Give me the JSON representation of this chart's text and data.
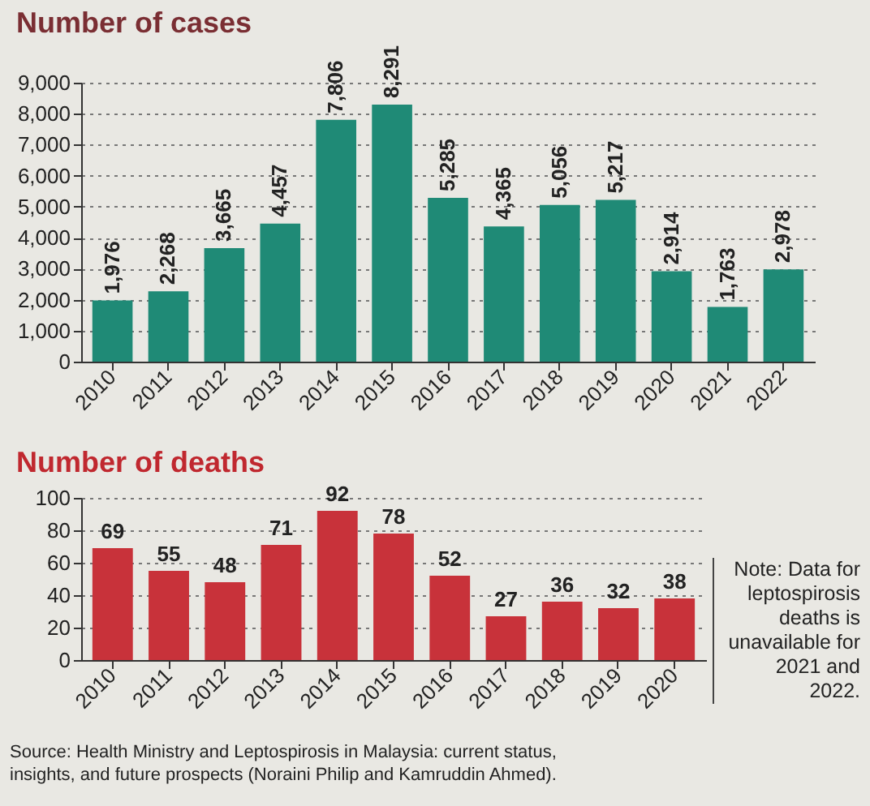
{
  "chart_data": [
    {
      "type": "bar",
      "title": "Number of cases",
      "categories": [
        "2010",
        "2011",
        "2012",
        "2013",
        "2014",
        "2015",
        "2016",
        "2017",
        "2018",
        "2019",
        "2020",
        "2021",
        "2022"
      ],
      "values": [
        1976,
        2268,
        3665,
        4457,
        7806,
        8291,
        5285,
        4365,
        5056,
        5217,
        2914,
        1763,
        2978
      ],
      "color": "#1f8a76",
      "ylim": [
        0,
        9000
      ],
      "yticks": [
        {
          "value": 0,
          "label": "0"
        },
        {
          "value": 1000,
          "label": "1,000"
        },
        {
          "value": 2000,
          "label": "2,000"
        },
        {
          "value": 3000,
          "label": "3,000"
        },
        {
          "value": 4000,
          "label": "4,000"
        },
        {
          "value": 5000,
          "label": "5,000"
        },
        {
          "value": 6000,
          "label": "6,000"
        },
        {
          "value": 7000,
          "label": "7,000"
        },
        {
          "value": 8000,
          "label": "8,000"
        },
        {
          "value": 9000,
          "label": "9,000"
        }
      ],
      "grid": "y",
      "value_labels": [
        "1,976",
        "2,268",
        "3,665",
        "4,457",
        "7,806",
        "8,291",
        "5,285",
        "4,365",
        "5,056",
        "5,217",
        "2,914",
        "1,763",
        "2,978"
      ]
    },
    {
      "type": "bar",
      "title": "Number of deaths",
      "categories": [
        "2010",
        "2011",
        "2012",
        "2013",
        "2014",
        "2015",
        "2016",
        "2017",
        "2018",
        "2019",
        "2020"
      ],
      "values": [
        69,
        55,
        48,
        71,
        92,
        78,
        52,
        27,
        36,
        32,
        38
      ],
      "color": "#c8323a",
      "ylim": [
        0,
        100
      ],
      "yticks": [
        0,
        20,
        40,
        60,
        80,
        100
      ],
      "grid": "y",
      "data_labels": true,
      "annotations": [
        "Note: Data for leptospirosis deaths is unavailable for 2021 and 2022.",
        "Source: Health Ministry and Leptospirosis in Malaysia: current status, insights, and future prospects (Noraini Philip and Kamruddin Ahmed)."
      ]
    }
  ]
}
